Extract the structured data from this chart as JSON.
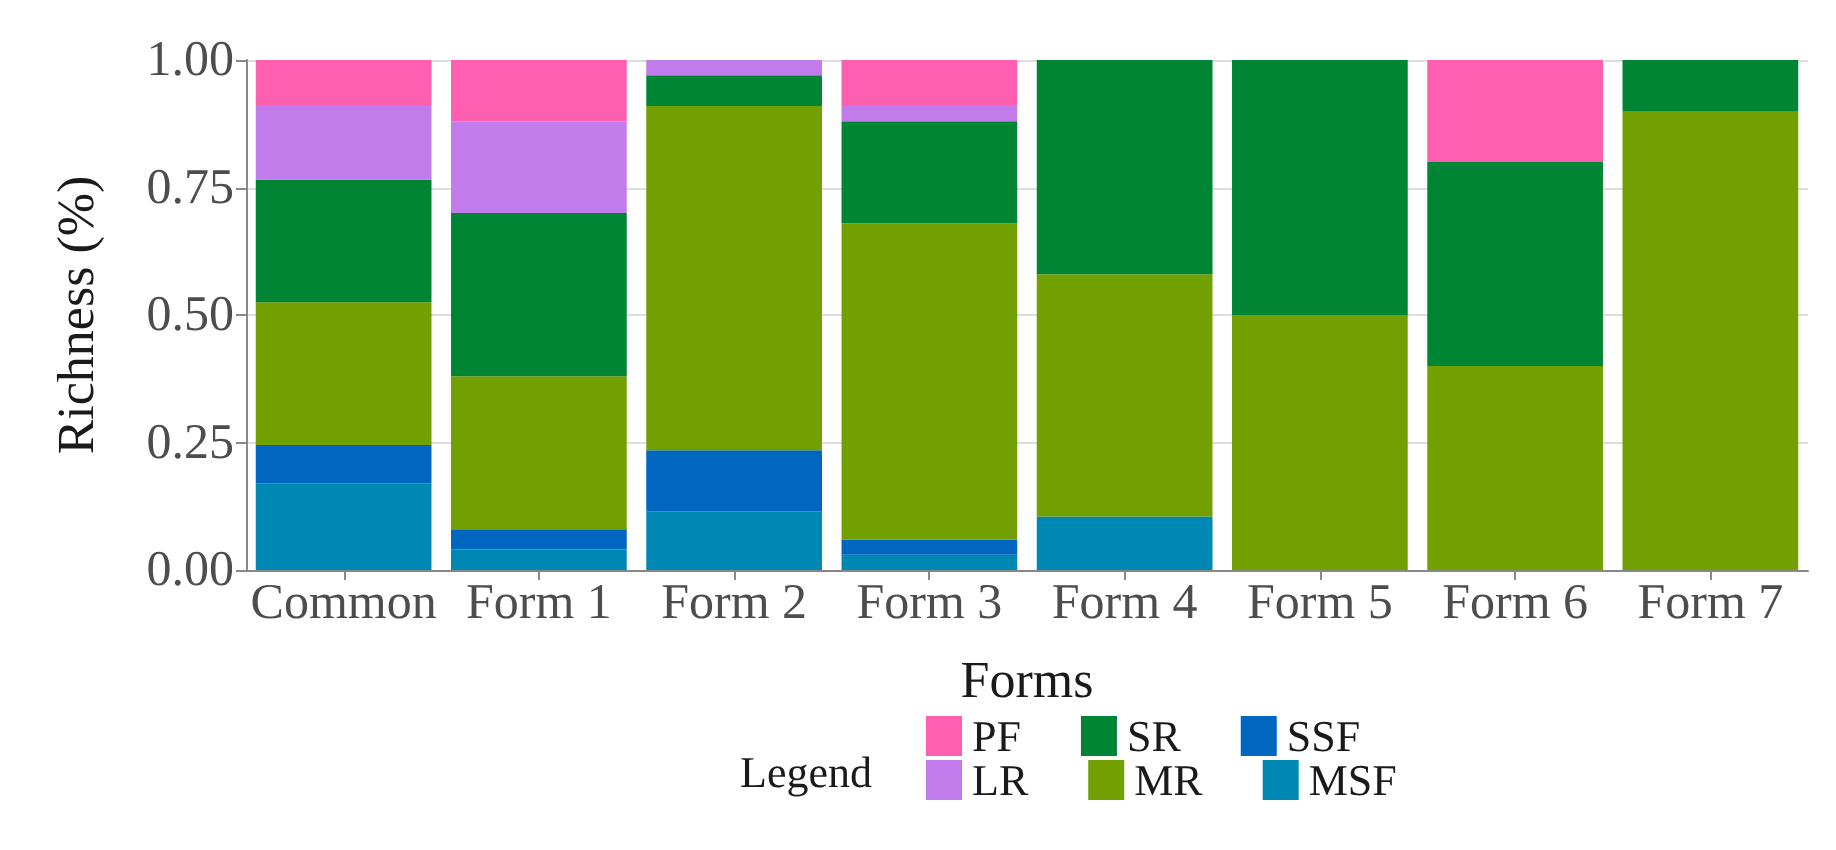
{
  "chart_data": {
    "type": "bar",
    "stacked": true,
    "xlabel": "Forms",
    "ylabel": "Richness (%)",
    "legend_title": "Legend",
    "legend": "bottom",
    "grid": "y",
    "categories": [
      "Common",
      "Form 1",
      "Form 2",
      "Form 3",
      "Form 4",
      "Form 5",
      "Form 6",
      "Form 7"
    ],
    "ylim": [
      0,
      1
    ],
    "yticks": [
      {
        "value": 0,
        "label": "0.00"
      },
      {
        "value": 0.25,
        "label": "0.25"
      },
      {
        "value": 0.5,
        "label": "0.50"
      },
      {
        "value": 0.75,
        "label": "0.75"
      },
      {
        "value": 1,
        "label": "1.00"
      }
    ],
    "series": [
      {
        "name": "MSF",
        "color": "#0088b5",
        "values": [
          0.17,
          0.04,
          0.115,
          0.03,
          0.105,
          0,
          0,
          0
        ]
      },
      {
        "name": "SSF",
        "color": "#0066bf",
        "values": [
          0.075,
          0.04,
          0.12,
          0.03,
          0,
          0,
          0,
          0
        ]
      },
      {
        "name": "MR",
        "color": "#72a000",
        "values": [
          0.28,
          0.3,
          0.675,
          0.62,
          0.475,
          0.5,
          0.4,
          0.9
        ]
      },
      {
        "name": "SR",
        "color": "#008535",
        "values": [
          0.24,
          0.32,
          0.06,
          0.2,
          0.42,
          0.5,
          0.4,
          0.1
        ]
      },
      {
        "name": "LR",
        "color": "#c27bea",
        "values": [
          0.145,
          0.18,
          0.03,
          0.03,
          0,
          0,
          0,
          0
        ]
      },
      {
        "name": "PF",
        "color": "#ff5fb0",
        "values": [
          0.09,
          0.12,
          0,
          0.09,
          0,
          0,
          0.2,
          0
        ]
      }
    ]
  }
}
